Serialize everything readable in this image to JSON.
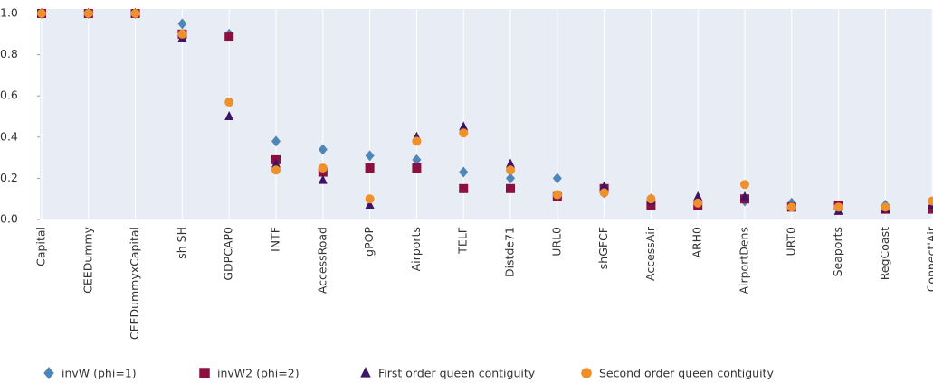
{
  "chart_data": {
    "type": "scatter",
    "categories": [
      "Capital",
      "CEEDummy",
      "CEEDummyxCapital",
      "sh SH",
      "GDPCAP0",
      "INTF",
      "AccessRoad",
      "gPOP",
      "Airports",
      "TELF",
      "Distde71",
      "URL0",
      "shGFCF",
      "AccessAir",
      "ARH0",
      "AirportDens",
      "URT0",
      "Seaports",
      "RegCoast",
      "Connect'Air"
    ],
    "series": [
      {
        "name": "invW (phi=1)",
        "color": "#4f86b8",
        "marker": "diamond",
        "values": [
          1.0,
          1.0,
          1.0,
          0.95,
          0.9,
          0.38,
          0.34,
          0.31,
          0.29,
          0.23,
          0.2,
          0.2,
          0.13,
          0.1,
          0.08,
          0.09,
          0.08,
          0.05,
          0.07,
          0.06
        ]
      },
      {
        "name": "invW2 (phi=2)",
        "color": "#8b1040",
        "marker": "square",
        "values": [
          1.0,
          1.0,
          1.0,
          0.9,
          0.89,
          0.29,
          0.23,
          0.25,
          0.25,
          0.15,
          0.15,
          0.11,
          0.15,
          0.07,
          0.07,
          0.1,
          0.06,
          0.07,
          0.05,
          0.05
        ]
      },
      {
        "name": "First order queen contiguity",
        "color": "#3d1466",
        "marker": "triangle",
        "values": [
          1.0,
          1.0,
          1.0,
          0.88,
          0.5,
          0.27,
          0.19,
          0.07,
          0.4,
          0.45,
          0.27,
          0.12,
          0.16,
          0.09,
          0.11,
          0.11,
          0.06,
          0.04,
          0.05,
          0.07
        ]
      },
      {
        "name": "Second order queen contiguity",
        "color": "#f0902a",
        "marker": "circle",
        "values": [
          1.0,
          1.0,
          1.0,
          0.9,
          0.57,
          0.24,
          0.25,
          0.1,
          0.38,
          0.42,
          0.24,
          0.12,
          0.13,
          0.1,
          0.08,
          0.17,
          0.06,
          0.06,
          0.06,
          0.09
        ]
      }
    ],
    "ylim": [
      0,
      1.0
    ],
    "yticks": [
      {
        "value": 0,
        "label": "0.0"
      },
      0.2,
      0.4,
      0.6,
      0.8,
      {
        "value": 1,
        "label": "1.0"
      }
    ],
    "grid": true,
    "legend": "bottom",
    "background": "#e8ecf5"
  }
}
